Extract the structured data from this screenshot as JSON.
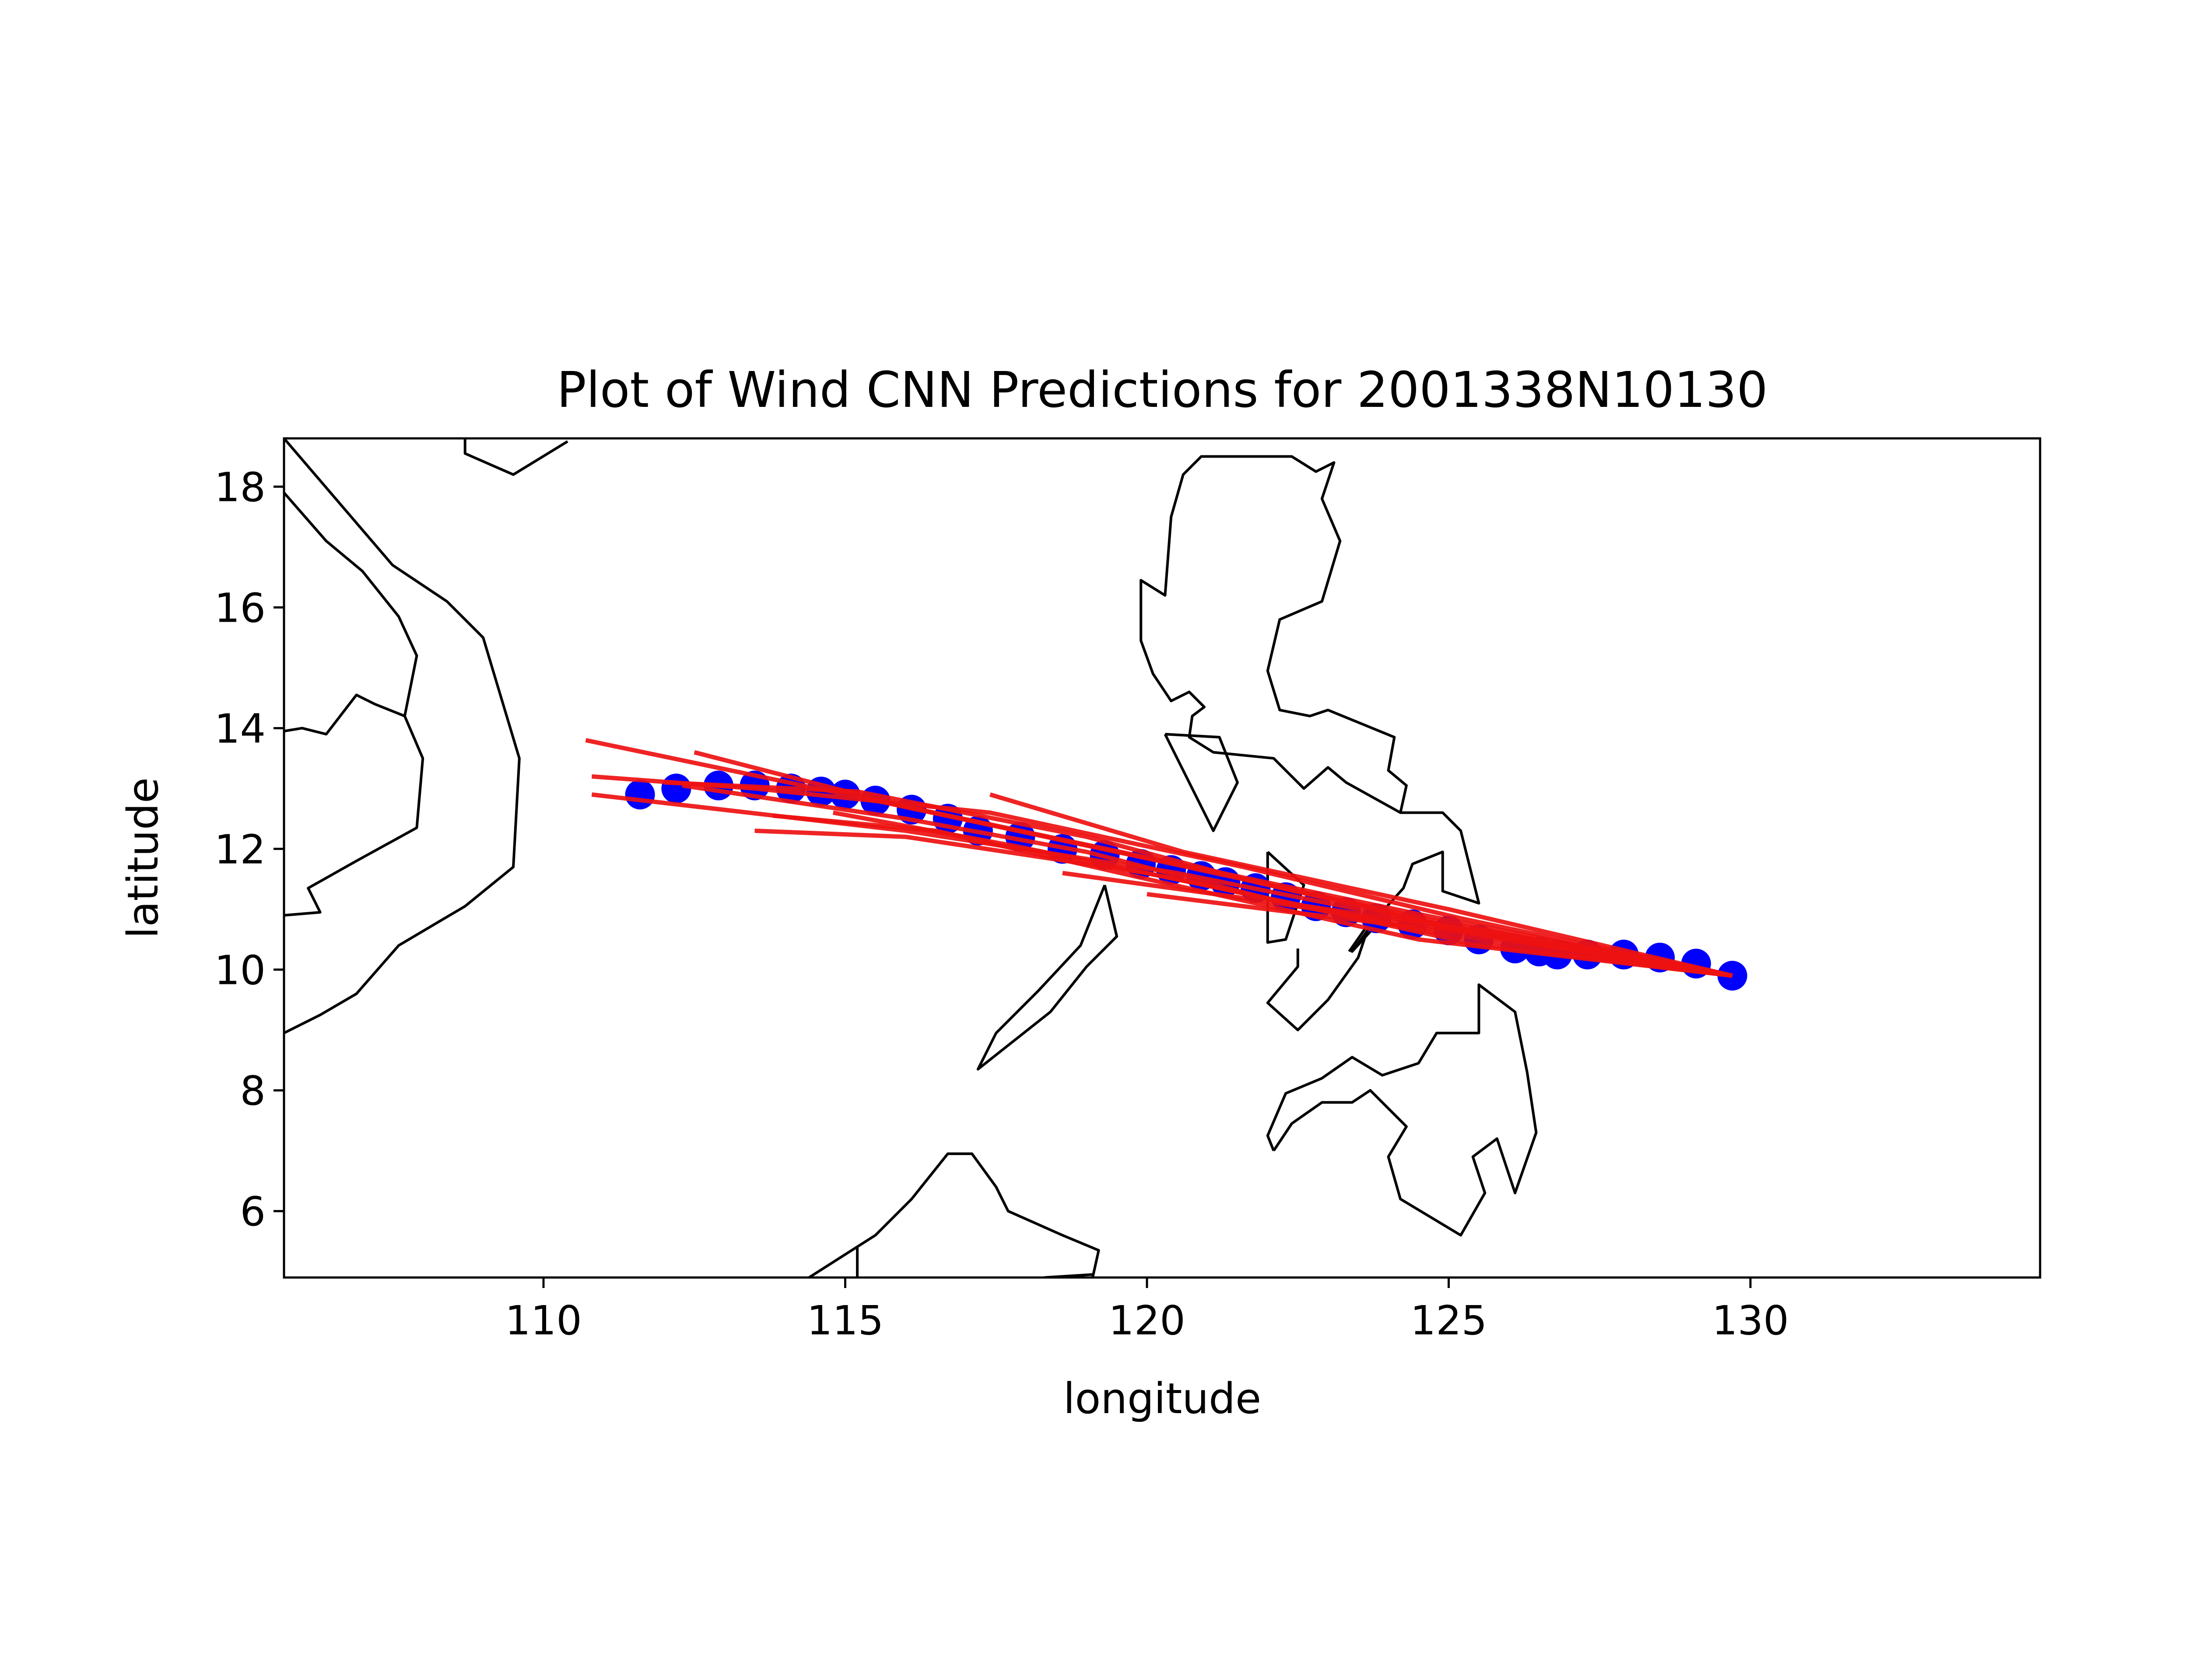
{
  "chart_data": {
    "type": "scatter",
    "title": "Plot of Wind CNN Predictions for 2001338N10130",
    "xlabel": "longitude",
    "ylabel": "latitude",
    "xlim": [
      105.7,
      134.8
    ],
    "ylim": [
      4.9,
      18.8
    ],
    "x_ticks": [
      110,
      115,
      120,
      125,
      130
    ],
    "y_ticks": [
      6,
      8,
      10,
      12,
      14,
      16,
      18
    ],
    "grid": false,
    "colors": {
      "track": "#0000ff",
      "prediction": "#ee1111",
      "coastline": "#000000"
    },
    "track_points": [
      [
        111.6,
        12.9
      ],
      [
        112.2,
        13.0
      ],
      [
        112.9,
        13.05
      ],
      [
        113.5,
        13.05
      ],
      [
        114.1,
        13.0
      ],
      [
        114.6,
        12.95
      ],
      [
        115.0,
        12.9
      ],
      [
        115.5,
        12.8
      ],
      [
        116.1,
        12.65
      ],
      [
        116.7,
        12.5
      ],
      [
        117.2,
        12.3
      ],
      [
        117.9,
        12.2
      ],
      [
        118.6,
        12.0
      ],
      [
        119.3,
        11.9
      ],
      [
        119.9,
        11.75
      ],
      [
        120.4,
        11.65
      ],
      [
        120.9,
        11.55
      ],
      [
        121.3,
        11.45
      ],
      [
        121.8,
        11.35
      ],
      [
        122.3,
        11.2
      ],
      [
        122.8,
        11.05
      ],
      [
        123.3,
        10.95
      ],
      [
        123.8,
        10.85
      ],
      [
        124.4,
        10.75
      ],
      [
        125.0,
        10.65
      ],
      [
        125.5,
        10.5
      ],
      [
        126.1,
        10.35
      ],
      [
        126.5,
        10.3
      ],
      [
        126.8,
        10.25
      ],
      [
        127.3,
        10.25
      ],
      [
        127.9,
        10.25
      ],
      [
        128.5,
        10.2
      ],
      [
        129.1,
        10.1
      ],
      [
        129.7,
        9.9
      ]
    ],
    "predictions": [
      [
        [
          129.7,
          9.9
        ],
        [
          125.2,
          10.85
        ],
        [
          121.6,
          11.7
        ],
        [
          117.4,
          12.6
        ],
        [
          113.5,
          13.0
        ],
        [
          110.8,
          13.2
        ]
      ],
      [
        [
          129.7,
          9.9
        ],
        [
          124.8,
          10.8
        ],
        [
          120.2,
          11.8
        ],
        [
          115.5,
          12.8
        ],
        [
          110.7,
          13.8
        ]
      ],
      [
        [
          129.7,
          9.9
        ],
        [
          125.0,
          10.7
        ],
        [
          120.5,
          11.6
        ],
        [
          116.0,
          12.3
        ],
        [
          110.8,
          12.9
        ]
      ],
      [
        [
          129.7,
          9.9
        ],
        [
          124.6,
          10.9
        ],
        [
          119.8,
          11.9
        ],
        [
          116.0,
          12.7
        ],
        [
          112.5,
          13.6
        ]
      ],
      [
        [
          129.7,
          9.9
        ],
        [
          124.5,
          10.5
        ],
        [
          120.0,
          11.5
        ],
        [
          116.5,
          12.3
        ],
        [
          113.8,
          12.55
        ]
      ],
      [
        [
          129.7,
          9.9
        ],
        [
          124.8,
          10.6
        ],
        [
          120.0,
          11.6
        ],
        [
          116.0,
          12.2
        ],
        [
          113.5,
          12.3
        ]
      ],
      [
        [
          129.7,
          9.9
        ],
        [
          125.4,
          10.6
        ],
        [
          121.5,
          11.2
        ],
        [
          118.6,
          11.6
        ]
      ],
      [
        [
          129.7,
          9.9
        ],
        [
          125.3,
          10.6
        ],
        [
          122.0,
          11.0
        ],
        [
          120.0,
          11.25
        ]
      ],
      [
        [
          129.7,
          9.9
        ],
        [
          125.0,
          11.0
        ],
        [
          120.6,
          11.95
        ],
        [
          117.4,
          12.9
        ]
      ],
      [
        [
          129.7,
          9.9
        ],
        [
          125.5,
          10.6
        ],
        [
          121.8,
          11.45
        ],
        [
          119.0,
          12.2
        ],
        [
          115.2,
          12.95
        ],
        [
          112.0,
          13.1
        ]
      ],
      [
        [
          129.7,
          9.9
        ],
        [
          125.8,
          10.6
        ],
        [
          122.3,
          11.1
        ],
        [
          119.0,
          11.95
        ],
        [
          116.0,
          12.5
        ],
        [
          112.3,
          13.05
        ]
      ],
      [
        [
          129.7,
          9.9
        ],
        [
          125.3,
          10.45
        ],
        [
          121.2,
          11.35
        ],
        [
          117.8,
          12.05
        ],
        [
          114.8,
          12.6
        ]
      ]
    ],
    "coastlines": [
      [
        [
          105.7,
          13.95
        ],
        [
          106.0,
          14.0
        ],
        [
          106.4,
          13.9
        ],
        [
          106.9,
          14.55
        ],
        [
          107.2,
          14.4
        ],
        [
          107.7,
          14.2
        ],
        [
          107.9,
          15.2
        ],
        [
          107.6,
          15.85
        ],
        [
          107.0,
          16.6
        ],
        [
          106.4,
          17.1
        ],
        [
          105.7,
          17.9
        ]
      ],
      [
        [
          107.7,
          14.2
        ],
        [
          108.0,
          13.5
        ],
        [
          107.9,
          12.35
        ],
        [
          106.9,
          11.8
        ],
        [
          106.1,
          11.35
        ],
        [
          106.3,
          10.95
        ],
        [
          105.7,
          10.9
        ]
      ],
      [
        [
          105.7,
          18.8
        ],
        [
          107.5,
          16.7
        ],
        [
          108.4,
          16.1
        ],
        [
          109.0,
          15.5
        ],
        [
          109.6,
          13.5
        ],
        [
          109.5,
          11.7
        ],
        [
          108.7,
          11.05
        ],
        [
          107.6,
          10.4
        ],
        [
          106.9,
          9.6
        ],
        [
          106.3,
          9.25
        ],
        [
          105.7,
          8.95
        ]
      ],
      [
        [
          108.7,
          18.8
        ],
        [
          108.7,
          18.55
        ],
        [
          109.5,
          18.2
        ],
        [
          110.4,
          18.75
        ]
      ],
      [
        [
          121.7,
          18.5
        ],
        [
          122.4,
          18.5
        ],
        [
          122.8,
          18.25
        ],
        [
          123.1,
          18.4
        ],
        [
          122.9,
          17.8
        ],
        [
          123.2,
          17.1
        ],
        [
          122.9,
          16.1
        ],
        [
          122.2,
          15.8
        ],
        [
          122.0,
          14.95
        ],
        [
          122.2,
          14.3
        ],
        [
          122.7,
          14.2
        ],
        [
          123.0,
          14.3
        ],
        [
          124.1,
          13.85
        ],
        [
          124.0,
          13.3
        ],
        [
          124.3,
          13.05
        ],
        [
          124.2,
          12.6
        ],
        [
          123.3,
          13.1
        ],
        [
          123.0,
          13.35
        ],
        [
          122.6,
          13.0
        ],
        [
          122.1,
          13.5
        ],
        [
          121.1,
          13.6
        ],
        [
          120.7,
          13.85
        ],
        [
          120.75,
          14.2
        ],
        [
          120.95,
          14.35
        ],
        [
          120.7,
          14.6
        ],
        [
          120.4,
          14.45
        ],
        [
          120.1,
          14.9
        ],
        [
          119.9,
          15.45
        ],
        [
          119.9,
          16.45
        ],
        [
          120.3,
          16.2
        ],
        [
          120.4,
          17.5
        ],
        [
          120.6,
          18.2
        ],
        [
          120.9,
          18.5
        ],
        [
          121.7,
          18.5
        ]
      ],
      [
        [
          120.3,
          13.9
        ],
        [
          121.2,
          13.85
        ],
        [
          121.5,
          13.1
        ],
        [
          121.1,
          12.3
        ],
        [
          120.3,
          13.9
        ]
      ],
      [
        [
          124.2,
          12.6
        ],
        [
          124.9,
          12.6
        ],
        [
          125.2,
          12.3
        ],
        [
          125.5,
          11.1
        ],
        [
          124.9,
          11.3
        ],
        [
          124.9,
          11.95
        ],
        [
          124.4,
          11.75
        ],
        [
          124.25,
          11.35
        ],
        [
          123.8,
          10.85
        ],
        [
          123.4,
          10.3
        ],
        [
          123.9,
          10.85
        ]
      ],
      [
        [
          122.0,
          11.95
        ],
        [
          122.6,
          11.4
        ],
        [
          122.3,
          10.5
        ],
        [
          122.0,
          10.45
        ],
        [
          122.0,
          11.95
        ]
      ],
      [
        [
          123.35,
          10.3
        ],
        [
          123.7,
          10.8
        ],
        [
          123.5,
          10.2
        ],
        [
          123.0,
          9.5
        ],
        [
          122.5,
          9.0
        ],
        [
          122.0,
          9.45
        ],
        [
          122.5,
          10.05
        ],
        [
          122.5,
          10.35
        ]
      ],
      [
        [
          119.3,
          11.4
        ],
        [
          119.5,
          10.55
        ],
        [
          119.0,
          10.05
        ],
        [
          118.4,
          9.3
        ],
        [
          117.2,
          8.35
        ],
        [
          117.5,
          8.95
        ],
        [
          118.2,
          9.65
        ],
        [
          118.9,
          10.4
        ],
        [
          119.3,
          11.4
        ]
      ],
      [
        [
          122.1,
          7.0
        ],
        [
          122.0,
          7.25
        ],
        [
          122.3,
          7.95
        ],
        [
          122.9,
          8.2
        ],
        [
          123.4,
          8.55
        ],
        [
          123.9,
          8.25
        ],
        [
          124.5,
          8.45
        ],
        [
          124.8,
          8.95
        ],
        [
          125.5,
          8.95
        ],
        [
          125.5,
          9.75
        ],
        [
          126.1,
          9.3
        ],
        [
          126.3,
          8.3
        ],
        [
          126.45,
          7.3
        ],
        [
          126.1,
          6.3
        ],
        [
          125.8,
          7.2
        ],
        [
          125.4,
          6.9
        ],
        [
          125.6,
          6.3
        ],
        [
          125.2,
          5.6
        ],
        [
          124.2,
          6.2
        ],
        [
          124.0,
          6.9
        ],
        [
          124.3,
          7.4
        ],
        [
          123.7,
          8.0
        ],
        [
          123.4,
          7.8
        ],
        [
          122.9,
          7.8
        ],
        [
          122.4,
          7.45
        ],
        [
          122.1,
          7.0
        ]
      ],
      [
        [
          114.4,
          4.9
        ],
        [
          115.5,
          5.6
        ],
        [
          116.1,
          6.2
        ],
        [
          116.7,
          6.95
        ],
        [
          117.1,
          6.95
        ],
        [
          117.5,
          6.4
        ],
        [
          117.7,
          6.0
        ],
        [
          118.6,
          5.6
        ],
        [
          119.2,
          5.35
        ],
        [
          119.1,
          4.9
        ]
      ],
      [
        [
          115.2,
          5.4
        ],
        [
          115.2,
          4.9
        ]
      ],
      [
        [
          118.3,
          4.9
        ],
        [
          119.1,
          4.95
        ]
      ]
    ]
  }
}
